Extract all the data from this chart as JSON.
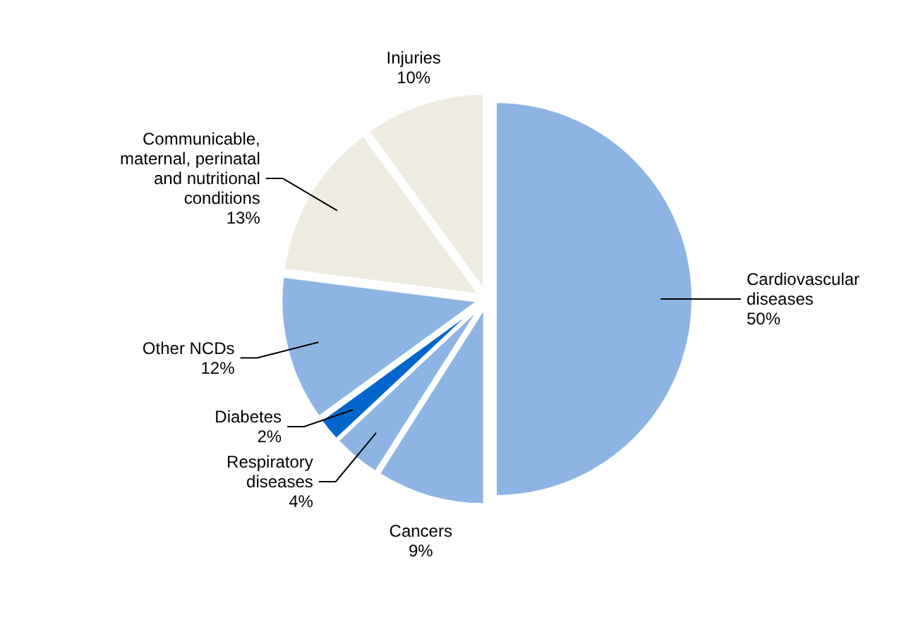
{
  "chart_data": {
    "type": "pie",
    "categories": [
      "Cardiovascular diseases",
      "Cancers",
      "Respiratory diseases",
      "Diabetes",
      "Other NCDs",
      "Communicable, maternal, perinatal and nutritional conditions",
      "Injuries"
    ],
    "values": [
      50,
      9,
      4,
      2,
      12,
      13,
      10
    ],
    "colors": [
      "#8eb4e3",
      "#8eb4e3",
      "#8eb4e3",
      "#0066cc",
      "#8eb4e3",
      "#eeece1",
      "#eeece1"
    ],
    "value_labels": [
      "50%",
      "9%",
      "4%",
      "2%",
      "12%",
      "13%",
      "10%"
    ]
  }
}
